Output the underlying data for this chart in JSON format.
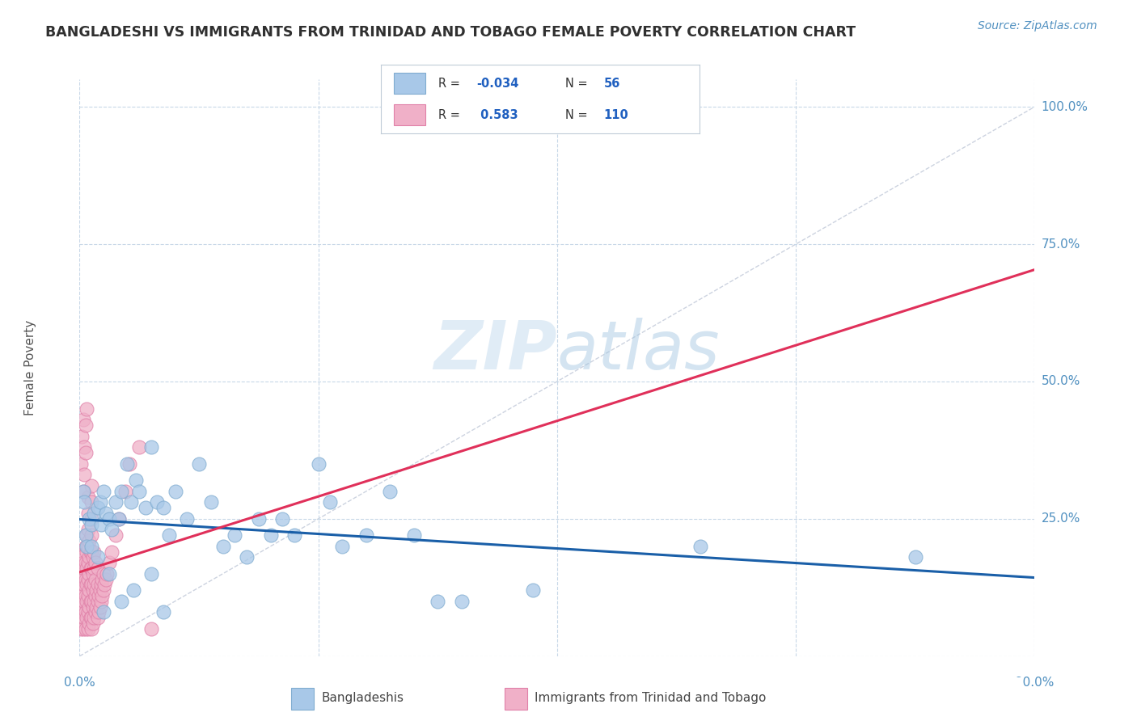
{
  "title": "BANGLADESHI VS IMMIGRANTS FROM TRINIDAD AND TOBAGO FEMALE POVERTY CORRELATION CHART",
  "source": "Source: ZipAtlas.com",
  "ylabel": "Female Poverty",
  "xlim": [
    0.0,
    0.8
  ],
  "ylim": [
    0.0,
    1.05
  ],
  "ytick_values": [
    1.0,
    0.75,
    0.5,
    0.25
  ],
  "ytick_labels": [
    "100.0%",
    "75.0%",
    "50.0%",
    "25.0%"
  ],
  "background_color": "#ffffff",
  "grid_color": "#c8d8e8",
  "tick_color": "#5090c0",
  "title_color": "#303030",
  "legend_val_color": "#2060c0",
  "watermark_zip_color": "#c5dff0",
  "watermark_atlas_color": "#a8cce4",
  "series": [
    {
      "name": "Bangladeshis",
      "R": -0.034,
      "N": 56,
      "marker_face": "#a8c8e8",
      "marker_edge": "#80acd0",
      "trend_color": "#1a5fa8",
      "x": [
        0.003,
        0.004,
        0.005,
        0.006,
        0.008,
        0.01,
        0.012,
        0.015,
        0.017,
        0.018,
        0.02,
        0.022,
        0.025,
        0.027,
        0.03,
        0.033,
        0.035,
        0.04,
        0.043,
        0.047,
        0.05,
        0.055,
        0.06,
        0.065,
        0.07,
        0.075,
        0.08,
        0.09,
        0.1,
        0.11,
        0.12,
        0.13,
        0.14,
        0.15,
        0.16,
        0.17,
        0.18,
        0.2,
        0.21,
        0.22,
        0.24,
        0.26,
        0.28,
        0.3,
        0.32,
        0.38,
        0.7,
        0.01,
        0.015,
        0.02,
        0.025,
        0.035,
        0.045,
        0.06,
        0.07,
        0.52
      ],
      "y": [
        0.3,
        0.28,
        0.22,
        0.2,
        0.25,
        0.24,
        0.26,
        0.27,
        0.28,
        0.24,
        0.3,
        0.26,
        0.25,
        0.23,
        0.28,
        0.25,
        0.3,
        0.35,
        0.28,
        0.32,
        0.3,
        0.27,
        0.38,
        0.28,
        0.27,
        0.22,
        0.3,
        0.25,
        0.35,
        0.28,
        0.2,
        0.22,
        0.18,
        0.25,
        0.22,
        0.25,
        0.22,
        0.35,
        0.28,
        0.2,
        0.22,
        0.3,
        0.22,
        0.1,
        0.1,
        0.12,
        0.18,
        0.2,
        0.18,
        0.08,
        0.15,
        0.1,
        0.12,
        0.15,
        0.08,
        0.2
      ]
    },
    {
      "name": "Immigrants from Trinidad and Tobago",
      "R": 0.583,
      "N": 110,
      "marker_face": "#f0b0c8",
      "marker_edge": "#e080a8",
      "trend_color": "#e0305a",
      "x": [
        0.001,
        0.001,
        0.001,
        0.001,
        0.002,
        0.002,
        0.002,
        0.002,
        0.002,
        0.003,
        0.003,
        0.003,
        0.003,
        0.003,
        0.004,
        0.004,
        0.004,
        0.004,
        0.005,
        0.005,
        0.005,
        0.005,
        0.005,
        0.005,
        0.006,
        0.006,
        0.006,
        0.006,
        0.006,
        0.006,
        0.007,
        0.007,
        0.007,
        0.007,
        0.007,
        0.007,
        0.007,
        0.007,
        0.007,
        0.008,
        0.008,
        0.008,
        0.008,
        0.008,
        0.008,
        0.009,
        0.009,
        0.009,
        0.009,
        0.009,
        0.01,
        0.01,
        0.01,
        0.01,
        0.01,
        0.01,
        0.01,
        0.01,
        0.01,
        0.01,
        0.011,
        0.011,
        0.011,
        0.011,
        0.011,
        0.012,
        0.012,
        0.012,
        0.012,
        0.012,
        0.013,
        0.013,
        0.013,
        0.013,
        0.014,
        0.014,
        0.015,
        0.015,
        0.015,
        0.015,
        0.016,
        0.016,
        0.017,
        0.017,
        0.018,
        0.018,
        0.019,
        0.019,
        0.02,
        0.02,
        0.021,
        0.022,
        0.023,
        0.025,
        0.027,
        0.03,
        0.033,
        0.038,
        0.042,
        0.05,
        0.001,
        0.002,
        0.003,
        0.004,
        0.005,
        0.003,
        0.004,
        0.005,
        0.06,
        0.006
      ],
      "y": [
        0.05,
        0.08,
        0.1,
        0.12,
        0.06,
        0.09,
        0.12,
        0.15,
        0.18,
        0.05,
        0.08,
        0.11,
        0.14,
        0.17,
        0.07,
        0.1,
        0.13,
        0.16,
        0.05,
        0.08,
        0.11,
        0.14,
        0.17,
        0.2,
        0.07,
        0.1,
        0.13,
        0.16,
        0.19,
        0.22,
        0.05,
        0.08,
        0.11,
        0.14,
        0.17,
        0.2,
        0.23,
        0.26,
        0.29,
        0.06,
        0.09,
        0.12,
        0.15,
        0.18,
        0.21,
        0.07,
        0.1,
        0.13,
        0.16,
        0.19,
        0.05,
        0.07,
        0.1,
        0.13,
        0.16,
        0.19,
        0.22,
        0.25,
        0.28,
        0.31,
        0.06,
        0.09,
        0.12,
        0.15,
        0.18,
        0.07,
        0.1,
        0.13,
        0.16,
        0.19,
        0.08,
        0.11,
        0.14,
        0.17,
        0.09,
        0.12,
        0.07,
        0.1,
        0.13,
        0.16,
        0.08,
        0.11,
        0.09,
        0.12,
        0.1,
        0.13,
        0.11,
        0.14,
        0.12,
        0.15,
        0.13,
        0.14,
        0.15,
        0.17,
        0.19,
        0.22,
        0.25,
        0.3,
        0.35,
        0.38,
        0.35,
        0.4,
        0.43,
        0.38,
        0.42,
        0.3,
        0.33,
        0.37,
        0.05,
        0.45
      ]
    }
  ]
}
